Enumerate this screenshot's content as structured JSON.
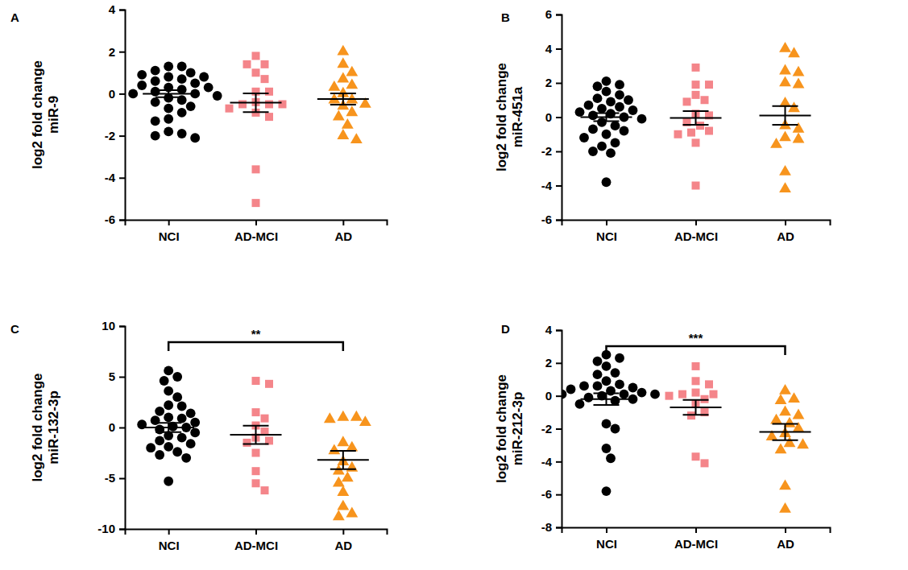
{
  "chart_data": [
    {
      "type": "strip",
      "panel": "A",
      "ylabel": [
        "log2 fold change",
        "miR-9"
      ],
      "categories": [
        "NCI",
        "AD-MCI",
        "AD"
      ],
      "ylim": [
        -6,
        4
      ],
      "yticks": [
        -6,
        -4,
        -2,
        0,
        2,
        4
      ],
      "groups": [
        {
          "color": "#000000",
          "marker": "circle",
          "values": [
            1.3,
            1.3,
            1.1,
            1.0,
            0.9,
            0.8,
            0.8,
            0.7,
            0.6,
            0.5,
            0.4,
            0.3,
            0.3,
            0.2,
            0.1,
            0.0,
            0.0,
            -0.1,
            -0.2,
            -0.3,
            -0.4,
            -0.6,
            -0.7,
            -0.9,
            -1.2,
            -1.3,
            -1.8,
            -1.9,
            -2.0,
            -2.1
          ],
          "mean": 0.0,
          "sem": 0.17
        },
        {
          "color": "#f4858a",
          "marker": "square",
          "values": [
            1.8,
            1.4,
            1.4,
            1.0,
            0.7,
            0.1,
            0.1,
            -0.4,
            -0.5,
            -0.5,
            -0.5,
            -0.7,
            -0.9,
            -1.1,
            -3.6,
            -5.2
          ],
          "mean": -0.43,
          "sem": 0.45
        },
        {
          "color": "#f7941d",
          "marker": "triangle",
          "values": [
            2.0,
            1.4,
            1.0,
            0.7,
            0.4,
            0.3,
            0.0,
            -0.3,
            -0.3,
            -0.5,
            -0.6,
            -0.9,
            -1.1,
            -1.5,
            -2.0,
            -2.2
          ],
          "mean": -0.25,
          "sem": 0.27
        }
      ]
    },
    {
      "type": "strip",
      "panel": "B",
      "ylabel": [
        "log2 fold change",
        "miR-451a"
      ],
      "categories": [
        "NCI",
        "AD-MCI",
        "AD"
      ],
      "ylim": [
        -6,
        6
      ],
      "yticks": [
        -6,
        -4,
        -2,
        0,
        2,
        4,
        6
      ],
      "groups": [
        {
          "color": "#000000",
          "marker": "circle",
          "values": [
            2.1,
            1.9,
            1.8,
            1.5,
            1.3,
            1.1,
            1.0,
            0.9,
            0.7,
            0.6,
            0.5,
            0.4,
            0.3,
            0.2,
            0.1,
            0.0,
            -0.1,
            -0.3,
            -0.5,
            -0.7,
            -0.8,
            -1.0,
            -1.2,
            -1.5,
            -1.7,
            -2.0,
            -2.1,
            -3.8
          ],
          "mean": 0.0,
          "sem": 0.23
        },
        {
          "color": "#f4858a",
          "marker": "square",
          "values": [
            2.9,
            1.9,
            1.9,
            1.3,
            1.0,
            0.9,
            0.2,
            0.1,
            -0.3,
            -0.5,
            -0.8,
            -0.9,
            -1.0,
            -1.5,
            -4.0
          ],
          "mean": -0.05,
          "sem": 0.4
        },
        {
          "color": "#f7941d",
          "marker": "triangle",
          "values": [
            4.0,
            3.7,
            2.7,
            2.6,
            2.0,
            1.9,
            0.8,
            0.5,
            -0.5,
            -0.7,
            -1.2,
            -1.3,
            -1.6,
            -3.2,
            -4.2
          ],
          "mean": 0.1,
          "sem": 0.55
        }
      ]
    },
    {
      "type": "strip",
      "panel": "C",
      "ylabel": [
        "log2 fold change",
        "miR-132-3p"
      ],
      "categories": [
        "NCI",
        "AD-MCI",
        "AD"
      ],
      "ylim": [
        -10,
        10
      ],
      "yticks": [
        -10,
        -5,
        0,
        5,
        10
      ],
      "groups": [
        {
          "color": "#000000",
          "marker": "circle",
          "values": [
            5.6,
            5.0,
            4.6,
            3.6,
            3.0,
            2.2,
            2.1,
            1.6,
            1.4,
            1.0,
            0.9,
            0.7,
            0.5,
            0.3,
            0.1,
            0.0,
            -0.2,
            -0.5,
            -0.8,
            -1.0,
            -1.3,
            -1.6,
            -1.9,
            -2.0,
            -2.4,
            -2.7,
            -3.0,
            -5.3
          ],
          "mean": 0.0,
          "sem": 0.45
        },
        {
          "color": "#f4858a",
          "marker": "square",
          "values": [
            4.6,
            4.3,
            1.5,
            0.9,
            0.2,
            -0.4,
            -1.0,
            -1.3,
            -1.5,
            -2.5,
            -4.3,
            -5.5,
            -6.2
          ],
          "mean": -0.72,
          "sem": 0.9
        },
        {
          "color": "#f7941d",
          "marker": "triangle",
          "values": [
            1.0,
            1.0,
            0.8,
            0.5,
            -1.5,
            -2.0,
            -2.3,
            -3.4,
            -4.0,
            -4.3,
            -5.0,
            -5.5,
            -6.4,
            -7.8,
            -8.5,
            -8.8
          ],
          "mean": -3.2,
          "sem": 0.9
        }
      ],
      "annotations": [
        {
          "text": "**",
          "from": "NCI",
          "to": "AD"
        }
      ]
    },
    {
      "type": "strip",
      "panel": "D",
      "ylabel": [
        "log2 fold change",
        "miR-212-3p"
      ],
      "categories": [
        "NCI",
        "AD-MCI",
        "AD"
      ],
      "ylim": [
        -8,
        4
      ],
      "yticks": [
        -8,
        -6,
        -4,
        -2,
        0,
        2,
        4
      ],
      "groups": [
        {
          "color": "#000000",
          "marker": "circle",
          "values": [
            2.5,
            2.3,
            2.1,
            1.8,
            1.4,
            1.3,
            0.9,
            0.7,
            0.6,
            0.6,
            0.5,
            0.4,
            0.3,
            0.2,
            0.1,
            0.1,
            0.1,
            0.0,
            -0.1,
            -0.2,
            -0.3,
            -0.5,
            -1.7,
            -2.0,
            -3.2,
            -3.8,
            -5.8
          ],
          "mean": -0.2,
          "sem": 0.35
        },
        {
          "color": "#f4858a",
          "marker": "square",
          "values": [
            1.8,
            0.9,
            0.7,
            0.2,
            0.1,
            0.1,
            0.0,
            -0.2,
            -0.5,
            -1.0,
            -1.2,
            -3.7,
            -4.1
          ],
          "mean": -0.7,
          "sem": 0.45
        },
        {
          "color": "#f7941d",
          "marker": "triangle",
          "values": [
            0.3,
            -0.2,
            -0.3,
            -1.0,
            -1.2,
            -1.5,
            -1.7,
            -2.0,
            -2.3,
            -2.5,
            -2.9,
            -3.0,
            -3.3,
            -5.5,
            -6.9
          ],
          "mean": -2.2,
          "sem": 0.5
        }
      ],
      "annotations": [
        {
          "text": "***",
          "from": "NCI",
          "to": "AD"
        }
      ]
    }
  ]
}
